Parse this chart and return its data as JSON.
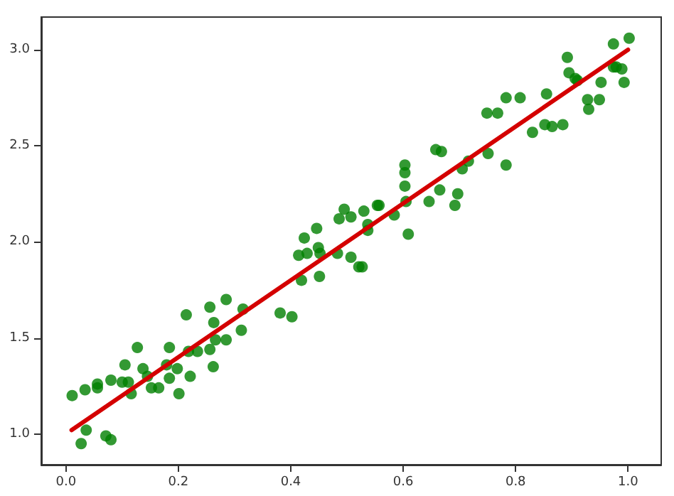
{
  "chart_data": {
    "type": "scatter",
    "xlim": [
      -0.044,
      1.059
    ],
    "ylim": [
      0.84,
      3.17
    ],
    "xticks": [
      {
        "value": 0,
        "label": "0.0"
      },
      {
        "value": 0.2,
        "label": "0.2"
      },
      {
        "value": 0.4,
        "label": "0.4"
      },
      {
        "value": 0.6,
        "label": "0.6"
      },
      {
        "value": 0.8,
        "label": "0.8"
      },
      {
        "value": 1,
        "label": "1.0"
      }
    ],
    "yticks": [
      {
        "value": 1,
        "label": "1.0"
      },
      {
        "value": 1.5,
        "label": "1.5"
      },
      {
        "value": 2,
        "label": "2.0"
      },
      {
        "value": 2.5,
        "label": "2.5"
      },
      {
        "value": 3,
        "label": "3.0"
      }
    ],
    "marker": "circle",
    "series": [
      {
        "color": "#008000",
        "x": [
          0.011,
          0.027,
          0.034,
          0.036,
          0.056,
          0.056,
          0.071,
          0.08,
          0.08,
          0.1,
          0.105,
          0.111,
          0.116,
          0.127,
          0.137,
          0.145,
          0.152,
          0.165,
          0.179,
          0.184,
          0.184,
          0.198,
          0.201,
          0.214,
          0.218,
          0.221,
          0.234,
          0.256,
          0.256,
          0.262,
          0.263,
          0.266,
          0.285,
          0.285,
          0.312,
          0.315,
          0.381,
          0.402,
          0.414,
          0.419,
          0.424,
          0.429,
          0.446,
          0.449,
          0.451,
          0.452,
          0.483,
          0.486,
          0.495,
          0.507,
          0.507,
          0.521,
          0.527,
          0.53,
          0.537,
          0.537,
          0.554,
          0.557,
          0.584,
          0.603,
          0.603,
          0.603,
          0.605,
          0.609,
          0.646,
          0.658,
          0.668,
          0.665,
          0.692,
          0.697,
          0.705,
          0.716,
          0.751,
          0.749,
          0.768,
          0.783,
          0.783,
          0.808,
          0.83,
          0.852,
          0.855,
          0.865,
          0.884,
          0.892,
          0.895,
          0.906,
          0.91,
          0.928,
          0.93,
          0.949,
          0.952,
          0.974,
          0.974,
          0.979,
          0.989,
          0.993,
          1.002
        ],
        "values": [
          1.2,
          0.95,
          1.23,
          1.02,
          1.26,
          1.24,
          0.99,
          0.97,
          1.28,
          1.27,
          1.36,
          1.27,
          1.21,
          1.45,
          1.34,
          1.3,
          1.24,
          1.24,
          1.36,
          1.45,
          1.29,
          1.34,
          1.21,
          1.62,
          1.43,
          1.3,
          1.43,
          1.66,
          1.44,
          1.35,
          1.58,
          1.49,
          1.7,
          1.49,
          1.54,
          1.65,
          1.63,
          1.61,
          1.93,
          1.8,
          2.02,
          1.94,
          2.07,
          1.97,
          1.82,
          1.94,
          1.94,
          2.12,
          2.17,
          2.13,
          1.92,
          1.87,
          1.87,
          2.16,
          2.06,
          2.09,
          2.19,
          2.19,
          2.14,
          2.4,
          2.36,
          2.29,
          2.21,
          2.04,
          2.21,
          2.48,
          2.47,
          2.27,
          2.19,
          2.25,
          2.38,
          2.42,
          2.46,
          2.67,
          2.67,
          2.75,
          2.4,
          2.75,
          2.57,
          2.61,
          2.77,
          2.6,
          2.61,
          2.96,
          2.88,
          2.85,
          2.84,
          2.74,
          2.69,
          2.74,
          2.83,
          3.03,
          2.91,
          2.91,
          2.9,
          2.83,
          3.06
        ]
      },
      {
        "type": "line",
        "color": "#d40000",
        "line_style": "solid",
        "marker": "none",
        "x": [
          0.01,
          1.0
        ],
        "values": [
          1.02,
          3.0
        ]
      }
    ]
  }
}
